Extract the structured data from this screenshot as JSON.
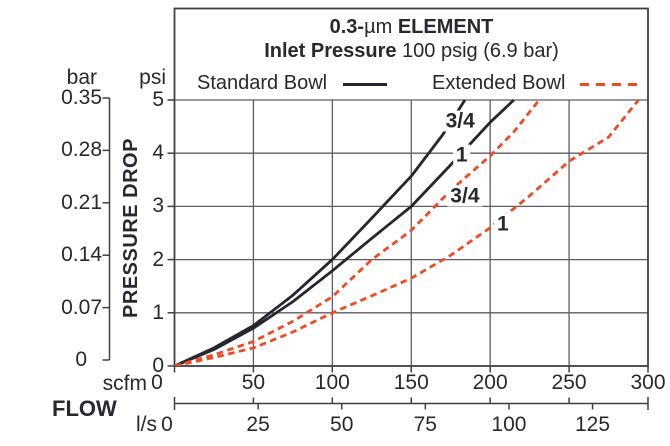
{
  "header": {
    "title": {
      "bold_start": "0.3-",
      "unit": "µm",
      "bold_end": " ELEMENT"
    },
    "subtitle": {
      "bold": "Inlet Pressure",
      "rest": " 100 psig (6.9 bar)"
    }
  },
  "legend": {
    "standard_label": "Standard Bowl",
    "extended_label": "Extended Bowl"
  },
  "colors": {
    "standard_curve": "#26262e",
    "extended_curve": "#ee4b24",
    "grid": "#5d5d63",
    "frame": "#3f3f46",
    "text": "#28282e"
  },
  "axes": {
    "y_title": "PRESSURE DROP",
    "y_secondary_unit": "bar",
    "y_primary_unit": "psi",
    "bar_ticks": [
      "0.35",
      "0.28",
      "0.21",
      "0.14",
      "0.07",
      "0"
    ],
    "psi_ticks": [
      "5",
      "4",
      "3",
      "2",
      "1",
      "0"
    ],
    "x_title": "FLOW",
    "x_primary_unit": "scfm",
    "scfm_ticks": [
      "0",
      "50",
      "100",
      "150",
      "200",
      "250",
      "300"
    ],
    "x_secondary_unit": "l/s",
    "ls_ticks": [
      "0",
      "25",
      "50",
      "75",
      "100",
      "125"
    ]
  },
  "chart_data": {
    "type": "line",
    "title": "0.3-µm ELEMENT",
    "subtitle": "Inlet Pressure 100 psig (6.9 bar)",
    "xlabel": "FLOW",
    "ylabel": "PRESSURE DROP",
    "x_units": [
      "scfm",
      "l/s"
    ],
    "y_units": [
      "psi",
      "bar"
    ],
    "xlim_scfm": [
      0,
      300
    ],
    "ylim_psi": [
      0,
      5
    ],
    "scfm_per_ls": 2.1189,
    "grid": true,
    "legend_position": "top",
    "series": [
      {
        "name": "Standard Bowl 3/4",
        "style": "solid",
        "points": [
          [
            0,
            0
          ],
          [
            25,
            0.34
          ],
          [
            50,
            0.76
          ],
          [
            75,
            1.33
          ],
          [
            100,
            2.0
          ],
          [
            125,
            2.78
          ],
          [
            150,
            3.57
          ],
          [
            170,
            4.35
          ],
          [
            184,
            5.0
          ]
        ]
      },
      {
        "name": "Standard Bowl 1",
        "style": "solid",
        "points": [
          [
            0,
            0
          ],
          [
            25,
            0.31
          ],
          [
            50,
            0.71
          ],
          [
            75,
            1.21
          ],
          [
            100,
            1.79
          ],
          [
            125,
            2.4
          ],
          [
            150,
            3.0
          ],
          [
            175,
            3.78
          ],
          [
            200,
            4.58
          ],
          [
            215,
            5.0
          ]
        ]
      },
      {
        "name": "Extended Bowl 3/4",
        "style": "dashed",
        "points": [
          [
            0,
            0
          ],
          [
            25,
            0.21
          ],
          [
            50,
            0.46
          ],
          [
            75,
            0.84
          ],
          [
            100,
            1.3
          ],
          [
            125,
            2.0
          ],
          [
            150,
            2.55
          ],
          [
            175,
            3.3
          ],
          [
            200,
            3.95
          ],
          [
            215,
            4.4
          ],
          [
            231,
            5.0
          ]
        ]
      },
      {
        "name": "Extended Bowl 1",
        "style": "dashed",
        "points": [
          [
            0,
            0
          ],
          [
            25,
            0.16
          ],
          [
            50,
            0.34
          ],
          [
            75,
            0.64
          ],
          [
            100,
            1.0
          ],
          [
            125,
            1.32
          ],
          [
            150,
            1.65
          ],
          [
            175,
            2.08
          ],
          [
            200,
            2.6
          ],
          [
            225,
            3.2
          ],
          [
            250,
            3.85
          ],
          [
            275,
            4.3
          ],
          [
            294,
            5.0
          ]
        ]
      }
    ],
    "annotations": [
      {
        "text": "3/4",
        "series": "Standard Bowl 3/4",
        "x_scfm": 181,
        "y_psi": 4.6
      },
      {
        "text": "1",
        "series": "Standard Bowl 1",
        "x_scfm": 182,
        "y_psi": 3.97
      },
      {
        "text": "3/4",
        "series": "Extended Bowl 3/4",
        "x_scfm": 184,
        "y_psi": 3.2
      },
      {
        "text": "1",
        "series": "Extended Bowl 1",
        "x_scfm": 208,
        "y_psi": 2.67
      }
    ]
  }
}
